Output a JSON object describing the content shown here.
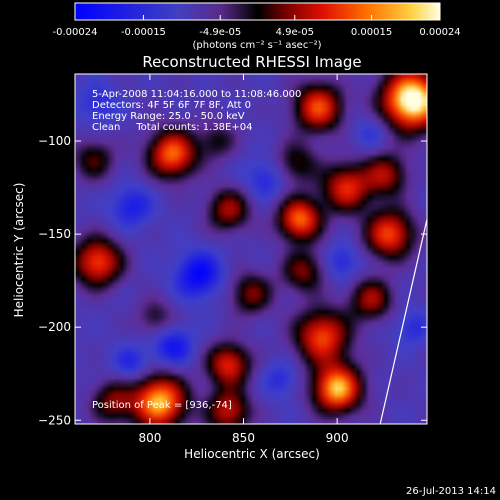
{
  "chart_data": {
    "type": "heatmap",
    "title": "Reconstructed RHESSI Image",
    "xlabel": "Heliocentric X (arcsec)",
    "ylabel": "Heliocentric Y (arcsec)",
    "xlim": [
      760,
      948
    ],
    "ylim": [
      -252,
      -64
    ],
    "x_ticks": [
      800,
      850,
      900
    ],
    "y_ticks": [
      -100,
      -150,
      -200,
      -250
    ],
    "colorbar": {
      "range": [
        -0.00024,
        0.00024
      ],
      "tick_labels": [
        "-0.00024",
        "-0.00015",
        "-4.9e-05",
        "4.9e-05",
        "0.00015",
        "0.00024"
      ],
      "tick_values": [
        -0.00024,
        -0.00015,
        -4.9e-05,
        4.9e-05,
        0.00015,
        0.00024
      ],
      "units_label": "(photons cm⁻² s⁻¹ asec⁻²)"
    },
    "annotations": [
      "5-Apr-2008 11:04:16.000 to 11:08:46.000",
      "Detectors: 4F 5F 6F 7F 8F, Att 0",
      "Energy Range: 25.0 - 50.0 keV",
      "Clean     Total counts: 1.38E+04"
    ],
    "peak_label": "Position of Peak = [936,-74]",
    "peak": [
      936,
      -74
    ],
    "limb_line": [
      [
        923,
        -252
      ],
      [
        948,
        -142
      ]
    ],
    "grid": false,
    "colors": {
      "background": "#000000",
      "text": "#ffffff"
    },
    "blobs": [
      {
        "x": 940,
        "y": -78,
        "a": 1.6,
        "s": 11
      },
      {
        "x": 890,
        "y": -82,
        "a": 1.0,
        "s": 9
      },
      {
        "x": 812,
        "y": -107,
        "a": 1.1,
        "s": 9
      },
      {
        "x": 836,
        "y": -100,
        "a": 0.4,
        "s": 7
      },
      {
        "x": 878,
        "y": -112,
        "a": 0.5,
        "s": 8
      },
      {
        "x": 905,
        "y": -125,
        "a": 0.9,
        "s": 9
      },
      {
        "x": 926,
        "y": -118,
        "a": 0.7,
        "s": 8
      },
      {
        "x": 880,
        "y": -142,
        "a": 1.1,
        "s": 8
      },
      {
        "x": 842,
        "y": -137,
        "a": 0.7,
        "s": 8
      },
      {
        "x": 772,
        "y": -165,
        "a": 1.0,
        "s": 9
      },
      {
        "x": 928,
        "y": -150,
        "a": 1.0,
        "s": 9
      },
      {
        "x": 854,
        "y": -182,
        "a": 0.6,
        "s": 8
      },
      {
        "x": 882,
        "y": -170,
        "a": 0.6,
        "s": 8
      },
      {
        "x": 918,
        "y": -185,
        "a": 0.7,
        "s": 8
      },
      {
        "x": 803,
        "y": -195,
        "a": 0.4,
        "s": 7
      },
      {
        "x": 842,
        "y": -220,
        "a": 0.9,
        "s": 8
      },
      {
        "x": 892,
        "y": -205,
        "a": 1.0,
        "s": 10
      },
      {
        "x": 900,
        "y": -233,
        "a": 1.3,
        "s": 9
      },
      {
        "x": 805,
        "y": -240,
        "a": 1.3,
        "s": 10
      },
      {
        "x": 842,
        "y": -245,
        "a": 0.8,
        "s": 8
      },
      {
        "x": 770,
        "y": -110,
        "a": 0.5,
        "s": 8
      },
      {
        "x": 780,
        "y": -240,
        "a": 0.6,
        "s": 8
      },
      {
        "x": 790,
        "y": -135,
        "a": -0.4,
        "s": 8
      },
      {
        "x": 826,
        "y": -172,
        "a": -0.55,
        "s": 9
      },
      {
        "x": 812,
        "y": -210,
        "a": -0.45,
        "s": 8
      },
      {
        "x": 790,
        "y": -220,
        "a": -0.35,
        "s": 7
      },
      {
        "x": 862,
        "y": -120,
        "a": -0.35,
        "s": 8
      },
      {
        "x": 903,
        "y": -165,
        "a": -0.35,
        "s": 7
      },
      {
        "x": 870,
        "y": -228,
        "a": -0.3,
        "s": 7
      },
      {
        "x": 918,
        "y": -95,
        "a": -0.25,
        "s": 7
      },
      {
        "x": 940,
        "y": -200,
        "a": -0.3,
        "s": 7
      },
      {
        "x": 772,
        "y": -80,
        "a": -0.3,
        "s": 8
      }
    ]
  },
  "footer": {
    "timestamp": "26-Jul-2013 14:14"
  }
}
